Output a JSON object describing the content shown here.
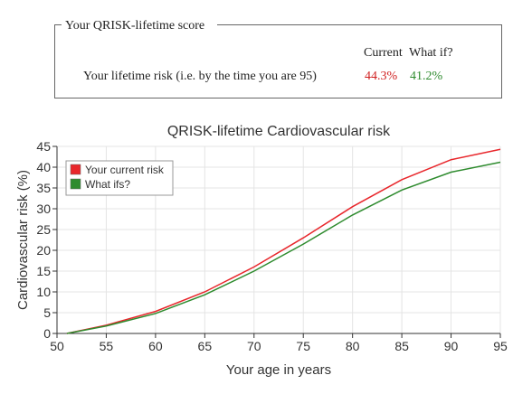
{
  "score_box": {
    "title": "Your QRISK-lifetime score",
    "columns": [
      "Current",
      "What if?"
    ],
    "rows": [
      {
        "label": "Your lifetime risk (i.e. by the time you are 95)",
        "values": [
          "44.3%",
          "41.2%"
        ]
      }
    ]
  },
  "chart_data": {
    "type": "line",
    "title": "QRISK-lifetime Cardiovascular risk",
    "x_label": "Your age in years",
    "y_label": "Cardiovascular risk (%)",
    "x": [
      51,
      55,
      60,
      65,
      70,
      75,
      80,
      85,
      90,
      95
    ],
    "series": [
      {
        "name": "Your current risk",
        "color": "#e8262b",
        "values": [
          0,
          2,
          5.3,
          10,
          16,
          23,
          30.5,
          37,
          41.8,
          44.3
        ]
      },
      {
        "name": "What ifs?",
        "color": "#2e8b2e",
        "values": [
          0,
          1.8,
          4.8,
          9.3,
          15,
          21.5,
          28.5,
          34.5,
          38.8,
          41.2
        ]
      }
    ],
    "xlim": [
      50,
      95
    ],
    "xticks": [
      50,
      55,
      60,
      65,
      70,
      75,
      80,
      85,
      90,
      95
    ],
    "ylim": [
      0,
      45
    ],
    "yticks": [
      0,
      5,
      10,
      15,
      20,
      25,
      30,
      35,
      40,
      45
    ],
    "grid": true,
    "legend": "upper left"
  }
}
